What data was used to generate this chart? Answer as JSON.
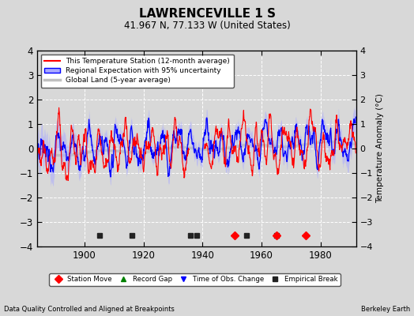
{
  "title": "LAWRENCEVILLE 1 S",
  "subtitle": "41.967 N, 77.133 W (United States)",
  "ylabel": "Temperature Anomaly (°C)",
  "ylim": [
    -4,
    4
  ],
  "yticks": [
    -4,
    -3,
    -2,
    -1,
    0,
    1,
    2,
    3,
    4
  ],
  "xlim": [
    1884,
    1992
  ],
  "xticks": [
    1900,
    1920,
    1940,
    1960,
    1980
  ],
  "bg_color": "#d8d8d8",
  "plot_bg": "#d8d8d8",
  "grid_color": "#ffffff",
  "footer_left": "Data Quality Controlled and Aligned at Breakpoints",
  "footer_right": "Berkeley Earth",
  "legend_labels": [
    "This Temperature Station (12-month average)",
    "Regional Expectation with 95% uncertainty",
    "Global Land (5-year average)"
  ],
  "marker_events": {
    "station_move": [
      1951,
      1965,
      1975
    ],
    "record_gap": [],
    "obs_change": [],
    "empirical_break": [
      1905,
      1916,
      1936,
      1938,
      1955,
      1965
    ]
  },
  "station_color": "#ff0000",
  "regional_color": "#0000ff",
  "regional_fill": "#aaaaff",
  "global_color": "#c0c0c0",
  "seed": 12345
}
